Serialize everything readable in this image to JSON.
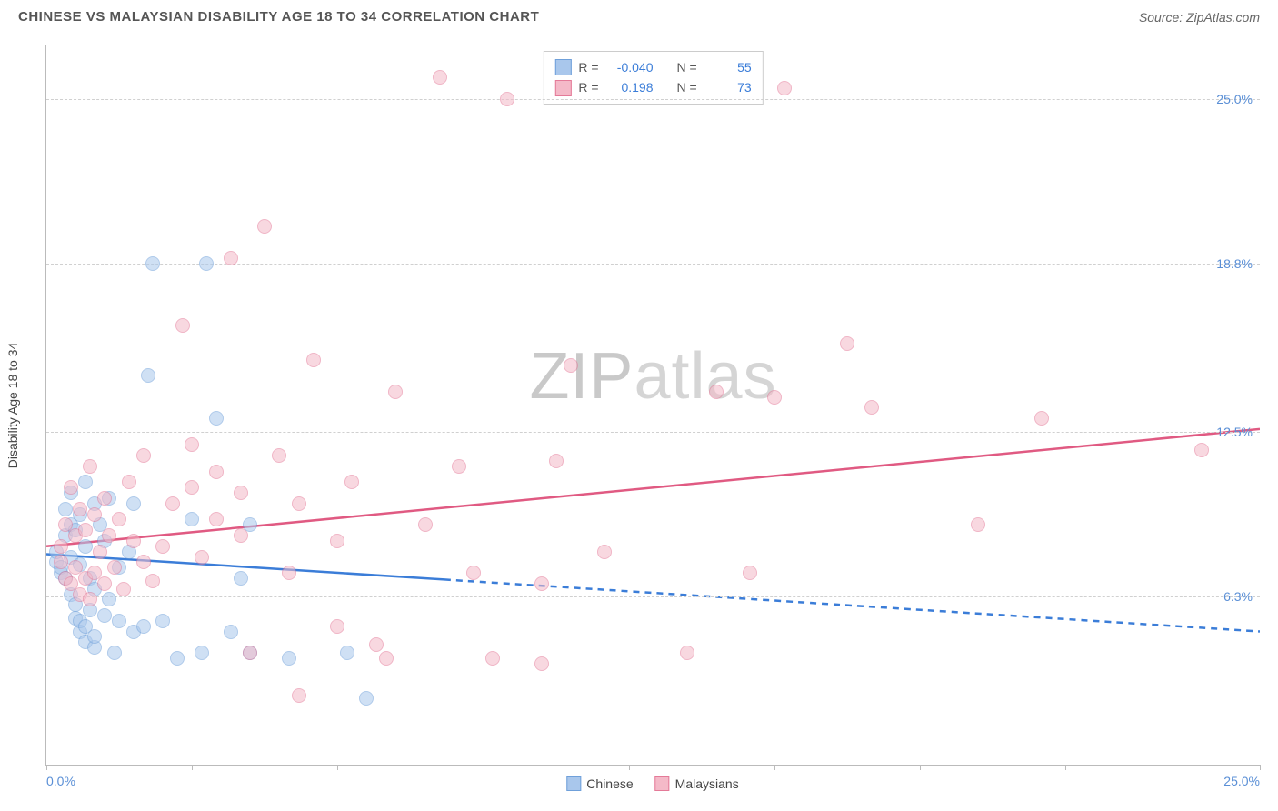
{
  "header": {
    "title": "CHINESE VS MALAYSIAN DISABILITY AGE 18 TO 34 CORRELATION CHART",
    "source": "Source: ZipAtlas.com"
  },
  "watermark": {
    "zip": "ZIP",
    "atlas": "atlas"
  },
  "chart": {
    "type": "scatter",
    "ylabel": "Disability Age 18 to 34",
    "background_color": "#ffffff",
    "grid_color": "#d0d0d0",
    "axis_color": "#bbbbbb",
    "label_color": "#5a8fd6",
    "xlim": [
      0,
      25
    ],
    "ylim": [
      0,
      27
    ],
    "xtick_positions": [
      0,
      3,
      6,
      9,
      12,
      15,
      18,
      21,
      25
    ],
    "xlim_labels": {
      "left": "0.0%",
      "right": "25.0%"
    },
    "ytick_labels": [
      {
        "y": 6.3,
        "label": "6.3%"
      },
      {
        "y": 12.5,
        "label": "12.5%"
      },
      {
        "y": 18.8,
        "label": "18.8%"
      },
      {
        "y": 25.0,
        "label": "25.0%"
      }
    ],
    "marker_radius": 8,
    "series": [
      {
        "name": "Chinese",
        "fill_color": "#a9c7ec",
        "stroke_color": "#6fa0da",
        "fill_opacity": 0.55,
        "trend": {
          "color": "#3b7dd8",
          "width": 2.5,
          "solid_until_x": 8.2,
          "y_at_x0": 7.9,
          "y_at_xmax": 5.0
        },
        "stats": {
          "R": "-0.040",
          "N": "55"
        },
        "points": [
          [
            0.2,
            7.6
          ],
          [
            0.2,
            8.0
          ],
          [
            0.3,
            7.2
          ],
          [
            0.3,
            7.4
          ],
          [
            0.4,
            7.0
          ],
          [
            0.4,
            8.6
          ],
          [
            0.4,
            9.6
          ],
          [
            0.5,
            6.4
          ],
          [
            0.5,
            7.8
          ],
          [
            0.5,
            9.0
          ],
          [
            0.5,
            10.2
          ],
          [
            0.6,
            5.5
          ],
          [
            0.6,
            6.0
          ],
          [
            0.6,
            8.8
          ],
          [
            0.7,
            5.0
          ],
          [
            0.7,
            5.4
          ],
          [
            0.7,
            7.5
          ],
          [
            0.7,
            9.4
          ],
          [
            0.8,
            4.6
          ],
          [
            0.8,
            5.2
          ],
          [
            0.8,
            8.2
          ],
          [
            0.8,
            10.6
          ],
          [
            0.9,
            5.8
          ],
          [
            0.9,
            7.0
          ],
          [
            1.0,
            4.4
          ],
          [
            1.0,
            4.8
          ],
          [
            1.0,
            6.6
          ],
          [
            1.0,
            9.8
          ],
          [
            1.1,
            9.0
          ],
          [
            1.2,
            5.6
          ],
          [
            1.2,
            8.4
          ],
          [
            1.3,
            6.2
          ],
          [
            1.3,
            10.0
          ],
          [
            1.4,
            4.2
          ],
          [
            1.5,
            5.4
          ],
          [
            1.5,
            7.4
          ],
          [
            1.7,
            8.0
          ],
          [
            1.8,
            5.0
          ],
          [
            1.8,
            9.8
          ],
          [
            2.0,
            5.2
          ],
          [
            2.1,
            14.6
          ],
          [
            2.2,
            18.8
          ],
          [
            2.4,
            5.4
          ],
          [
            2.7,
            4.0
          ],
          [
            3.0,
            9.2
          ],
          [
            3.2,
            4.2
          ],
          [
            3.3,
            18.8
          ],
          [
            3.5,
            13.0
          ],
          [
            4.0,
            7.0
          ],
          [
            4.2,
            4.2
          ],
          [
            4.2,
            9.0
          ],
          [
            5.0,
            4.0
          ],
          [
            6.2,
            4.2
          ],
          [
            6.6,
            2.5
          ],
          [
            3.8,
            5.0
          ]
        ]
      },
      {
        "name": "Malaysians",
        "fill_color": "#f4b9c8",
        "stroke_color": "#e47a98",
        "fill_opacity": 0.55,
        "trend": {
          "color": "#e05a82",
          "width": 2.5,
          "solid_until_x": 25,
          "y_at_x0": 8.2,
          "y_at_xmax": 12.6
        },
        "stats": {
          "R": "0.198",
          "N": "73"
        },
        "points": [
          [
            0.3,
            7.6
          ],
          [
            0.3,
            8.2
          ],
          [
            0.4,
            7.0
          ],
          [
            0.4,
            9.0
          ],
          [
            0.5,
            6.8
          ],
          [
            0.5,
            10.4
          ],
          [
            0.6,
            7.4
          ],
          [
            0.6,
            8.6
          ],
          [
            0.7,
            6.4
          ],
          [
            0.7,
            9.6
          ],
          [
            0.8,
            7.0
          ],
          [
            0.8,
            8.8
          ],
          [
            0.9,
            6.2
          ],
          [
            0.9,
            11.2
          ],
          [
            1.0,
            7.2
          ],
          [
            1.0,
            9.4
          ],
          [
            1.1,
            8.0
          ],
          [
            1.2,
            6.8
          ],
          [
            1.2,
            10.0
          ],
          [
            1.3,
            8.6
          ],
          [
            1.4,
            7.4
          ],
          [
            1.5,
            9.2
          ],
          [
            1.6,
            6.6
          ],
          [
            1.7,
            10.6
          ],
          [
            1.8,
            8.4
          ],
          [
            2.0,
            7.6
          ],
          [
            2.0,
            11.6
          ],
          [
            2.2,
            6.9
          ],
          [
            2.4,
            8.2
          ],
          [
            2.6,
            9.8
          ],
          [
            2.8,
            16.5
          ],
          [
            3.0,
            10.4
          ],
          [
            3.0,
            12.0
          ],
          [
            3.2,
            7.8
          ],
          [
            3.5,
            9.2
          ],
          [
            3.5,
            11.0
          ],
          [
            3.8,
            19.0
          ],
          [
            4.0,
            8.6
          ],
          [
            4.0,
            10.2
          ],
          [
            4.2,
            4.2
          ],
          [
            4.5,
            20.2
          ],
          [
            4.8,
            11.6
          ],
          [
            5.0,
            7.2
          ],
          [
            5.2,
            9.8
          ],
          [
            5.2,
            2.6
          ],
          [
            5.5,
            15.2
          ],
          [
            6.0,
            8.4
          ],
          [
            6.3,
            10.6
          ],
          [
            6.8,
            4.5
          ],
          [
            7.2,
            14.0
          ],
          [
            7.8,
            9.0
          ],
          [
            8.1,
            25.8
          ],
          [
            8.5,
            11.2
          ],
          [
            8.8,
            7.2
          ],
          [
            9.5,
            25.0
          ],
          [
            9.2,
            4.0
          ],
          [
            10.2,
            6.8
          ],
          [
            10.2,
            3.8
          ],
          [
            10.5,
            11.4
          ],
          [
            10.8,
            15.0
          ],
          [
            11.5,
            8.0
          ],
          [
            13.2,
            4.2
          ],
          [
            13.8,
            14.0
          ],
          [
            14.5,
            7.2
          ],
          [
            15.0,
            13.8
          ],
          [
            15.2,
            25.4
          ],
          [
            16.5,
            15.8
          ],
          [
            17.0,
            13.4
          ],
          [
            19.2,
            9.0
          ],
          [
            20.5,
            13.0
          ],
          [
            23.8,
            11.8
          ],
          [
            6.0,
            5.2
          ],
          [
            7.0,
            4.0
          ]
        ]
      }
    ],
    "stats_box": {
      "R_label": "R =",
      "N_label": "N ="
    },
    "legend_bottom": [
      {
        "label": "Chinese",
        "fill": "#a9c7ec",
        "stroke": "#6fa0da"
      },
      {
        "label": "Malaysians",
        "fill": "#f4b9c8",
        "stroke": "#e47a98"
      }
    ]
  }
}
